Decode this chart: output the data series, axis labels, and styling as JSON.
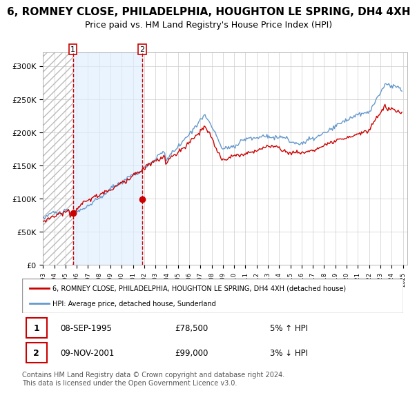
{
  "title": "6, ROMNEY CLOSE, PHILADELPHIA, HOUGHTON LE SPRING, DH4 4XH",
  "subtitle": "Price paid vs. HM Land Registry's House Price Index (HPI)",
  "ylabel": "",
  "ylim": [
    0,
    320000
  ],
  "yticks": [
    0,
    50000,
    100000,
    150000,
    200000,
    250000,
    300000
  ],
  "ytick_labels": [
    "£0",
    "£50K",
    "£100K",
    "£150K",
    "£200K",
    "£250K",
    "£300K"
  ],
  "sale1_date": "08-SEP-1995",
  "sale1_price": 78500,
  "sale1_hpi_pct": "5%",
  "sale1_direction": "↑",
  "sale2_date": "09-NOV-2001",
  "sale2_price": 99000,
  "sale2_hpi_pct": "3%",
  "sale2_direction": "↓",
  "legend_red": "6, ROMNEY CLOSE, PHILADELPHIA, HOUGHTON LE SPRING, DH4 4XH (detached house)",
  "legend_blue": "HPI: Average price, detached house, Sunderland",
  "footer": "Contains HM Land Registry data © Crown copyright and database right 2024.\nThis data is licensed under the Open Government Licence v3.0.",
  "hatch_color": "#cccccc",
  "bg_highlight": "#ddeeff",
  "red_line_color": "#cc0000",
  "blue_line_color": "#6699cc",
  "grid_color": "#cccccc",
  "title_fontsize": 11,
  "subtitle_fontsize": 9,
  "axis_fontsize": 8,
  "legend_fontsize": 8,
  "footer_fontsize": 7
}
